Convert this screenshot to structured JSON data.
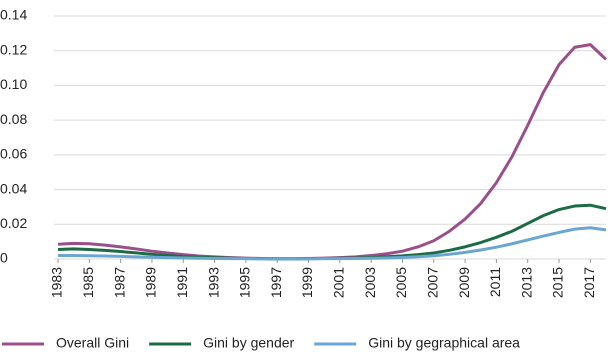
{
  "chart_data": {
    "type": "line",
    "x": [
      1983,
      1984,
      1985,
      1986,
      1987,
      1988,
      1989,
      1990,
      1991,
      1992,
      1993,
      1994,
      1995,
      1996,
      1997,
      1998,
      1999,
      2000,
      2001,
      2002,
      2003,
      2004,
      2005,
      2006,
      2007,
      2008,
      2009,
      2010,
      2011,
      2012,
      2013,
      2014,
      2015,
      2016,
      2017,
      2018
    ],
    "xlim": [
      1983,
      2018
    ],
    "xticks": [
      1983,
      1985,
      1987,
      1989,
      1991,
      1993,
      1995,
      1997,
      1999,
      2001,
      2003,
      2005,
      2007,
      2009,
      2011,
      2013,
      2015,
      2017
    ],
    "ylim": [
      0,
      0.14
    ],
    "yticks": [
      0,
      0.02,
      0.04,
      0.06,
      0.08,
      {
        "value": 0.1,
        "label": "0.10"
      },
      0.12,
      0.14
    ],
    "grid": true,
    "legend": "bottom",
    "series": [
      {
        "name": "Overall Gini",
        "color": "#9b4f8a",
        "values": [
          0.0085,
          0.009,
          0.0088,
          0.008,
          0.007,
          0.0058,
          0.0045,
          0.0035,
          0.0025,
          0.0017,
          0.0012,
          0.0008,
          0.0005,
          0.0003,
          0.0002,
          0.0002,
          0.0003,
          0.0005,
          0.0008,
          0.0012,
          0.002,
          0.003,
          0.0045,
          0.007,
          0.0105,
          0.016,
          0.023,
          0.032,
          0.044,
          0.059,
          0.077,
          0.096,
          0.112,
          0.122,
          0.1235,
          0.115
        ]
      },
      {
        "name": "Gini by gender",
        "color": "#1b6b45",
        "values": [
          0.0055,
          0.0058,
          0.0055,
          0.005,
          0.0043,
          0.0035,
          0.0027,
          0.002,
          0.0014,
          0.001,
          0.0007,
          0.0005,
          0.0003,
          0.0002,
          0.0001,
          0.0001,
          0.0002,
          0.0003,
          0.0004,
          0.0006,
          0.0009,
          0.0013,
          0.0018,
          0.0025,
          0.0035,
          0.005,
          0.007,
          0.0095,
          0.0125,
          0.016,
          0.0205,
          0.025,
          0.0285,
          0.0305,
          0.031,
          0.029
        ]
      },
      {
        "name": "Gini by gegraphical area",
        "color": "#6aa6d1",
        "values": [
          0.002,
          0.002,
          0.0019,
          0.0017,
          0.0015,
          0.0012,
          0.001,
          0.0008,
          0.0006,
          0.0004,
          0.0003,
          0.0002,
          0.0002,
          0.0001,
          0.0001,
          0.0001,
          0.0001,
          0.0002,
          0.0002,
          0.0003,
          0.0004,
          0.0006,
          0.0009,
          0.0013,
          0.0019,
          0.0027,
          0.0038,
          0.0052,
          0.0068,
          0.0088,
          0.011,
          0.0132,
          0.0153,
          0.0172,
          0.018,
          0.0168
        ]
      }
    ]
  }
}
